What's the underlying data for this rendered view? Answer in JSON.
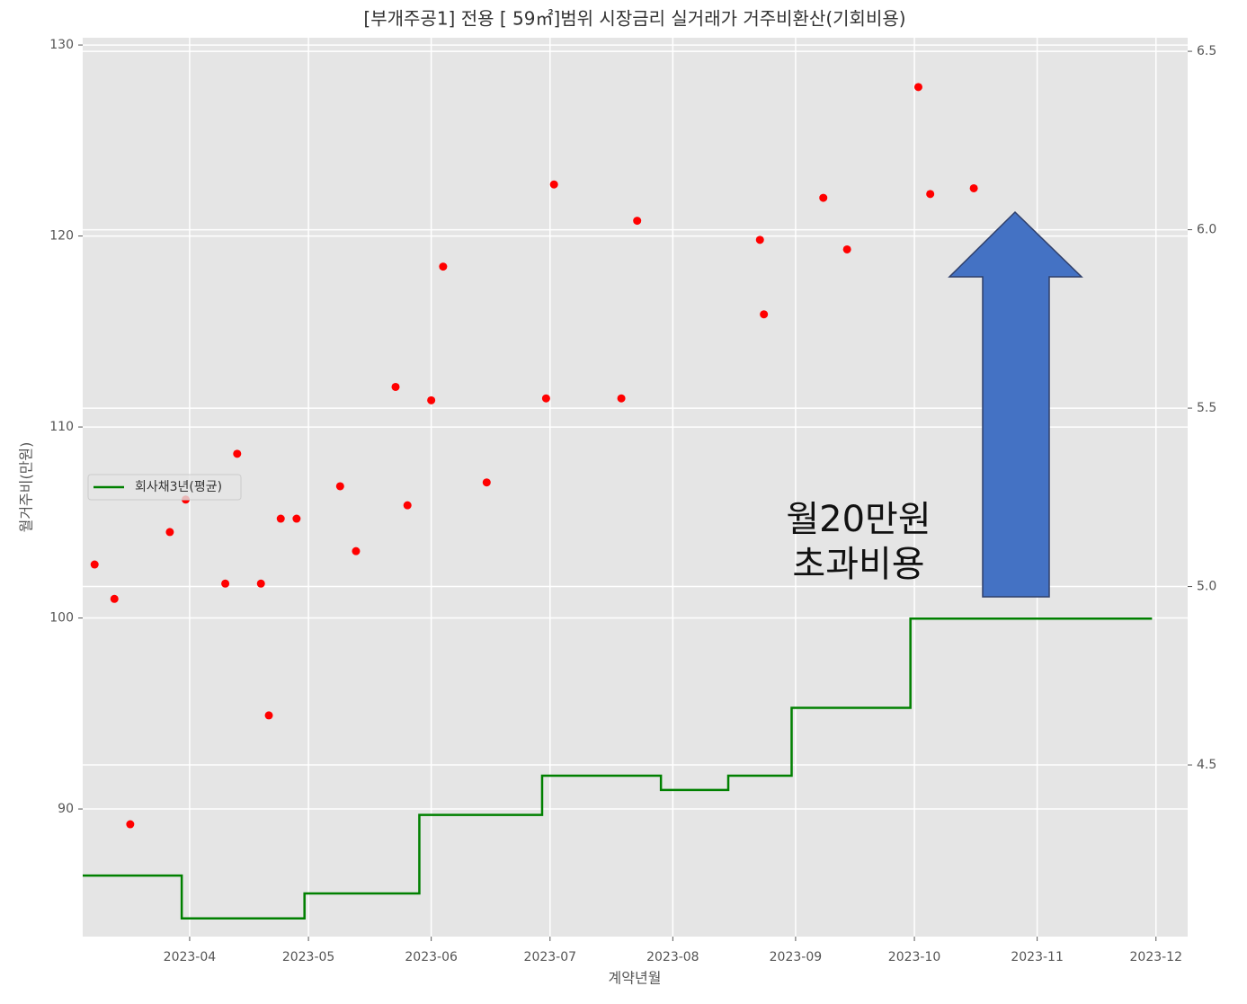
{
  "chart_data": {
    "type": "scatter",
    "title": "[부개주공1] 전용 [ 59㎡]범위 시장금리 실거래가 거주비환산(기회비용)",
    "xlabel": "계약년월",
    "ylabel": "월거주비(만원)",
    "xlim": [
      "2023-03-05",
      "2023-12-09"
    ],
    "xticks": [
      {
        "value": "2023-04-01",
        "label": "2023-04"
      },
      {
        "value": "2023-05-01",
        "label": "2023-05"
      },
      {
        "value": "2023-06-01",
        "label": "2023-06"
      },
      {
        "value": "2023-07-01",
        "label": "2023-07"
      },
      {
        "value": "2023-08-01",
        "label": "2023-08"
      },
      {
        "value": "2023-09-01",
        "label": "2023-09"
      },
      {
        "value": "2023-10-01",
        "label": "2023-10"
      },
      {
        "value": "2023-11-01",
        "label": "2023-11"
      },
      {
        "value": "2023-12-01",
        "label": "2023-12"
      }
    ],
    "ylim": [
      83.32,
      130.38
    ],
    "yticks": [
      90,
      100,
      110,
      120,
      130
    ],
    "y2lim": [
      4.019,
      6.538
    ],
    "y2ticks": [
      4.5,
      {
        "value": 5,
        "label": "5.0"
      },
      5.5,
      {
        "value": 6,
        "label": "6.0"
      },
      6.5
    ],
    "grid": true,
    "legend": "center left",
    "annotations": [
      "월20만원",
      "초과비용"
    ],
    "series": [
      {
        "type": "scatter",
        "color": "#ff0000",
        "x": [
          "2023-03-08",
          "2023-03-13",
          "2023-03-17",
          "2023-03-27",
          "2023-03-31",
          "2023-04-10",
          "2023-04-13",
          "2023-04-19",
          "2023-04-21",
          "2023-04-24",
          "2023-04-28",
          "2023-05-09",
          "2023-05-13",
          "2023-05-23",
          "2023-05-26",
          "2023-06-01",
          "2023-06-04",
          "2023-06-15",
          "2023-06-30",
          "2023-07-02",
          "2023-07-19",
          "2023-07-23",
          "2023-08-23",
          "2023-08-24",
          "2023-09-08",
          "2023-09-14",
          "2023-10-02",
          "2023-10-05",
          "2023-10-16"
        ],
        "values": [
          102.8,
          101.0,
          89.2,
          104.5,
          106.2,
          101.8,
          108.6,
          101.8,
          94.9,
          105.2,
          105.2,
          106.9,
          103.5,
          112.1,
          105.9,
          111.4,
          118.4,
          107.1,
          111.5,
          122.7,
          111.5,
          120.8,
          119.8,
          115.9,
          122.0,
          119.3,
          127.8,
          122.2,
          122.5
        ]
      },
      {
        "type": "step",
        "name": "회사채3년(평균)",
        "color": "#008000",
        "axis": "y2",
        "x": [
          "2023-03-05",
          "2023-03-30",
          "2023-04-30",
          "2023-05-29",
          "2023-06-29",
          "2023-07-29",
          "2023-08-15",
          "2023-08-31",
          "2023-09-30",
          "2023-11-30"
        ],
        "values": [
          4.19,
          4.07,
          4.14,
          4.36,
          4.47,
          4.43,
          4.47,
          4.66,
          4.91,
          4.91
        ]
      }
    ]
  }
}
